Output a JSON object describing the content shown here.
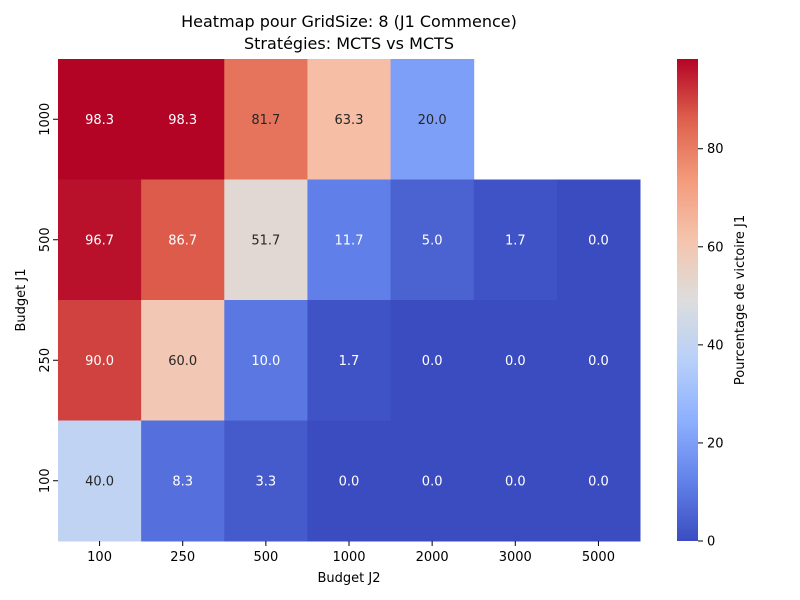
{
  "chart_data": {
    "type": "heatmap",
    "title": "Heatmap pour GridSize: 8 (J1 Commence)",
    "subtitle": "Stratégies: MCTS vs MCTS",
    "xlabel": "Budget J2",
    "ylabel": "Budget J1",
    "x_categories": [
      "100",
      "250",
      "500",
      "1000",
      "2000",
      "3000",
      "5000"
    ],
    "y_categories": [
      "1000",
      "500",
      "250",
      "100"
    ],
    "values": [
      [
        98.3,
        98.3,
        81.7,
        63.3,
        20.0,
        null,
        null
      ],
      [
        96.7,
        86.7,
        51.7,
        11.7,
        5.0,
        1.7,
        0.0
      ],
      [
        90.0,
        60.0,
        10.0,
        1.7,
        0.0,
        0.0,
        0.0
      ],
      [
        40.0,
        8.3,
        3.3,
        0.0,
        0.0,
        0.0,
        0.0
      ]
    ],
    "colormap": "coolwarm",
    "vmin": 0,
    "vmax": 98.3,
    "colorbar": {
      "label": "Pourcentage de victoire J1",
      "ticks": [
        0,
        20,
        40,
        60,
        80
      ]
    },
    "grid": false
  }
}
